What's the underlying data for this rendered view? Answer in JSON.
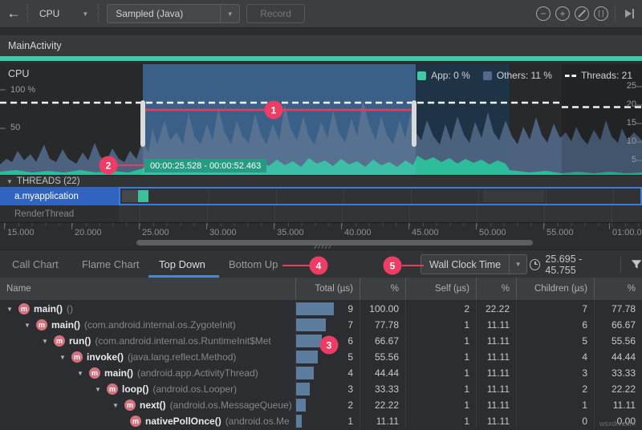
{
  "toolbar": {
    "back": "←",
    "process": "CPU",
    "config": "Sampled (Java)",
    "record_label": "Record",
    "icons": [
      "zoom-out",
      "zoom-in",
      "reset-zoom",
      "zoom-to-selection",
      "attach-to-live"
    ]
  },
  "stage": {
    "title": "MainActivity"
  },
  "cpu": {
    "label": "CPU",
    "legend": [
      {
        "label": "App: 0 %",
        "color": "#41c9a4"
      },
      {
        "label": "Others: 11 %",
        "color": "#56688c"
      },
      {
        "label": "Threads: 21",
        "color": "#ffffff"
      }
    ],
    "left_axis": [
      "100 %",
      "50"
    ],
    "right_axis": [
      "25",
      "20",
      "15",
      "10",
      "5"
    ],
    "tooltip": "00:00:25.528 - 00:00:52.463"
  },
  "threads": {
    "header": "THREADS (22)",
    "rows": [
      "a.myapplication",
      "RenderThread"
    ]
  },
  "ruler": {
    "labels": [
      "15.000",
      "20.000",
      "25.000",
      "30.000",
      "35.000",
      "40.000",
      "45.000",
      "50.000",
      "55.000",
      "01:00.0"
    ]
  },
  "tabs": {
    "items": [
      "Call Chart",
      "Flame Chart",
      "Top Down",
      "Bottom Up"
    ],
    "active": "Top Down"
  },
  "detail": {
    "clock_mode": "Wall Clock Time",
    "range": "25.695 - 45.755"
  },
  "callouts": [
    "1",
    "2",
    "3",
    "4",
    "5"
  ],
  "table": {
    "columns": [
      "Name",
      "Total (µs)",
      "%",
      "Self (µs)",
      "%",
      "Children (µs)",
      "%"
    ],
    "rows": [
      {
        "depth": 0,
        "leaf": false,
        "name": "main()",
        "pkg": "()",
        "total": 9,
        "total_pct": "100.00",
        "self": 2,
        "self_pct": "22.22",
        "children": 7,
        "children_pct": "77.78"
      },
      {
        "depth": 1,
        "leaf": false,
        "name": "main()",
        "pkg": "(com.android.internal.os.ZygoteInit)",
        "total": 7,
        "total_pct": "77.78",
        "self": 1,
        "self_pct": "11.11",
        "children": 6,
        "children_pct": "66.67"
      },
      {
        "depth": 2,
        "leaf": false,
        "name": "run()",
        "pkg": "(com.android.internal.os.RuntimeInit$Met",
        "total": 6,
        "total_pct": "66.67",
        "self": 1,
        "self_pct": "11.11",
        "children": 5,
        "children_pct": "55.56"
      },
      {
        "depth": 3,
        "leaf": false,
        "name": "invoke()",
        "pkg": "(java.lang.reflect.Method)",
        "total": 5,
        "total_pct": "55.56",
        "self": 1,
        "self_pct": "11.11",
        "children": 4,
        "children_pct": "44.44"
      },
      {
        "depth": 4,
        "leaf": false,
        "name": "main()",
        "pkg": "(android.app.ActivityThread)",
        "total": 4,
        "total_pct": "44.44",
        "self": 1,
        "self_pct": "11.11",
        "children": 3,
        "children_pct": "33.33"
      },
      {
        "depth": 5,
        "leaf": false,
        "name": "loop()",
        "pkg": "(android.os.Looper)",
        "total": 3,
        "total_pct": "33.33",
        "self": 1,
        "self_pct": "11.11",
        "children": 2,
        "children_pct": "22.22"
      },
      {
        "depth": 6,
        "leaf": false,
        "name": "next()",
        "pkg": "(android.os.MessageQueue)",
        "total": 2,
        "total_pct": "22.22",
        "self": 1,
        "self_pct": "11.11",
        "children": 1,
        "children_pct": "11.11"
      },
      {
        "depth": 7,
        "leaf": true,
        "name": "nativePollOnce()",
        "pkg": "(android.os.Me",
        "total": 1,
        "total_pct": "11.11",
        "self": 1,
        "self_pct": "11.11",
        "children": 0,
        "children_pct": "0.00"
      }
    ]
  },
  "chart_data": {
    "type": "area",
    "title": "CPU usage timeline",
    "series": [
      {
        "name": "App",
        "current_value_pct": 0,
        "color": "#41c9a4"
      },
      {
        "name": "Others",
        "current_value_pct": 11,
        "color": "#56688c"
      },
      {
        "name": "Threads",
        "current_value": 21,
        "style": "dashed-line"
      }
    ],
    "y_left_axis": {
      "label": "CPU %",
      "ticks": [
        50,
        100
      ],
      "range": [
        0,
        100
      ]
    },
    "y_right_axis": {
      "label": "Threads",
      "ticks": [
        5,
        10,
        15,
        20,
        25
      ],
      "range": [
        0,
        25
      ]
    },
    "x_axis": {
      "ticks_seconds": [
        "15.000",
        "20.000",
        "25.000",
        "30.000",
        "35.000",
        "40.000",
        "45.000",
        "50.000",
        "55.000",
        "01:00.0"
      ]
    },
    "recorded_trace_range": "00:00:25.528 - 00:00:52.463",
    "selection_range": "25.695 - 45.755",
    "legend_position": "top-right"
  },
  "watermark": "wsxdn.com"
}
